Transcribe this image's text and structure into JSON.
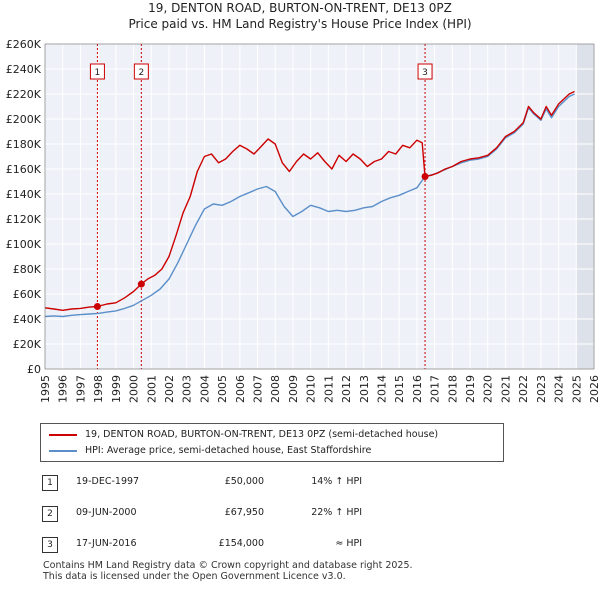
{
  "chart_data": {
    "type": "line",
    "title": "19, DENTON ROAD, BURTON-ON-TRENT, DE13 0PZ",
    "subtitle": "Price paid vs. HM Land Registry's House Price Index (HPI)",
    "xlim": [
      1995,
      2026
    ],
    "ylim": [
      0,
      260000
    ],
    "x_ticks": [
      "1995",
      "1996",
      "1997",
      "1998",
      "1999",
      "2000",
      "2001",
      "2002",
      "2003",
      "2004",
      "2005",
      "2006",
      "2007",
      "2008",
      "2009",
      "2010",
      "2011",
      "2012",
      "2013",
      "2014",
      "2015",
      "2016",
      "2017",
      "2018",
      "2019",
      "2020",
      "2021",
      "2022",
      "2023",
      "2024",
      "2025",
      "2026"
    ],
    "y_ticks": [
      "£0",
      "£20K",
      "£40K",
      "£60K",
      "£80K",
      "£100K",
      "£120K",
      "£140K",
      "£160K",
      "£180K",
      "£200K",
      "£220K",
      "£240K",
      "£260K"
    ],
    "future_shade_from": 2025.0,
    "series": [
      {
        "name": "19, DENTON ROAD, BURTON-ON-TRENT, DE13 0PZ (semi-detached house)",
        "color": "#cc0000",
        "x": [
          1995.0,
          1995.5,
          1996.0,
          1996.5,
          1997.0,
          1997.5,
          1997.96,
          1998.5,
          1999.0,
          1999.5,
          2000.0,
          2000.44,
          2000.8,
          2001.2,
          2001.6,
          2002.0,
          2002.4,
          2002.8,
          2003.2,
          2003.6,
          2004.0,
          2004.4,
          2004.8,
          2005.2,
          2005.6,
          2006.0,
          2006.4,
          2006.8,
          2007.2,
          2007.6,
          2008.0,
          2008.4,
          2008.8,
          2009.2,
          2009.6,
          2010.0,
          2010.4,
          2010.8,
          2011.2,
          2011.6,
          2012.0,
          2012.4,
          2012.8,
          2013.2,
          2013.6,
          2014.0,
          2014.4,
          2014.8,
          2015.2,
          2015.6,
          2016.0,
          2016.3,
          2016.46,
          2016.8,
          2017.2,
          2017.6,
          2018.0,
          2018.5,
          2019.0,
          2019.5,
          2020.0,
          2020.5,
          2021.0,
          2021.5,
          2022.0,
          2022.3,
          2022.6,
          2023.0,
          2023.3,
          2023.6,
          2024.0,
          2024.3,
          2024.6,
          2024.9
        ],
        "values": [
          49000,
          48000,
          47000,
          48000,
          48500,
          49500,
          50000,
          52000,
          53000,
          57000,
          62000,
          67950,
          72000,
          75000,
          80000,
          90000,
          107000,
          125000,
          138000,
          158000,
          170000,
          172000,
          165000,
          168000,
          174000,
          179000,
          176000,
          172000,
          178000,
          184000,
          180000,
          165000,
          158000,
          166000,
          172000,
          168000,
          173000,
          166000,
          160000,
          171000,
          166000,
          172000,
          168000,
          162000,
          166000,
          168000,
          174000,
          172000,
          179000,
          177000,
          183000,
          181000,
          154000,
          155000,
          157000,
          160000,
          162000,
          166000,
          168000,
          169000,
          171000,
          177000,
          186000,
          190000,
          197000,
          210000,
          205000,
          200000,
          210000,
          203000,
          212000,
          216000,
          220000,
          222000
        ]
      },
      {
        "name": "HPI: Average price, semi-detached house, East Staffordshire",
        "color": "#5b8fc9",
        "x": [
          1995.0,
          1995.5,
          1996.0,
          1996.5,
          1997.0,
          1997.5,
          1998.0,
          1998.5,
          1999.0,
          1999.5,
          2000.0,
          2000.5,
          2001.0,
          2001.5,
          2002.0,
          2002.5,
          2003.0,
          2003.5,
          2004.0,
          2004.5,
          2005.0,
          2005.5,
          2006.0,
          2006.5,
          2007.0,
          2007.5,
          2008.0,
          2008.5,
          2009.0,
          2009.5,
          2010.0,
          2010.5,
          2011.0,
          2011.5,
          2012.0,
          2012.5,
          2013.0,
          2013.5,
          2014.0,
          2014.5,
          2015.0,
          2015.5,
          2016.0,
          2016.46,
          2017.0,
          2017.5,
          2018.0,
          2018.5,
          2019.0,
          2019.5,
          2020.0,
          2020.5,
          2021.0,
          2021.5,
          2022.0,
          2022.3,
          2022.6,
          2023.0,
          2023.3,
          2023.6,
          2024.0,
          2024.3,
          2024.6,
          2024.9
        ],
        "values": [
          42000,
          42500,
          42000,
          43000,
          43500,
          44000,
          44500,
          45500,
          46500,
          48500,
          51000,
          55000,
          59000,
          64000,
          72000,
          85000,
          100000,
          115000,
          128000,
          132000,
          131000,
          134000,
          138000,
          141000,
          144000,
          146000,
          142000,
          130000,
          122000,
          126000,
          131000,
          129000,
          126000,
          127000,
          126000,
          127000,
          129000,
          130000,
          134000,
          137000,
          139000,
          142000,
          145000,
          154000,
          156000,
          159000,
          162000,
          165000,
          167000,
          168000,
          170000,
          176000,
          185000,
          189000,
          196000,
          209000,
          204000,
          199000,
          208000,
          201000,
          210000,
          214000,
          218000,
          220000
        ]
      }
    ],
    "sales": [
      {
        "label": "1",
        "x": 1997.96,
        "value": 50000
      },
      {
        "label": "2",
        "x": 2000.44,
        "value": 67950
      },
      {
        "label": "3",
        "x": 2016.46,
        "value": 154000
      }
    ]
  },
  "legend": {
    "property": "19, DENTON ROAD, BURTON-ON-TRENT, DE13 0PZ (semi-detached house)",
    "hpi": "HPI: Average price, semi-detached house, East Staffordshire"
  },
  "transactions": [
    {
      "num": "1",
      "date": "19-DEC-1997",
      "price": "£50,000",
      "hpi": "14% ↑ HPI"
    },
    {
      "num": "2",
      "date": "09-JUN-2000",
      "price": "£67,950",
      "hpi": "22% ↑ HPI"
    },
    {
      "num": "3",
      "date": "17-JUN-2016",
      "price": "£154,000",
      "hpi": "≈ HPI"
    }
  ],
  "footer": {
    "line1": "Contains HM Land Registry data © Crown copyright and database right 2025.",
    "line2": "This data is licensed under the Open Government Licence v3.0."
  }
}
